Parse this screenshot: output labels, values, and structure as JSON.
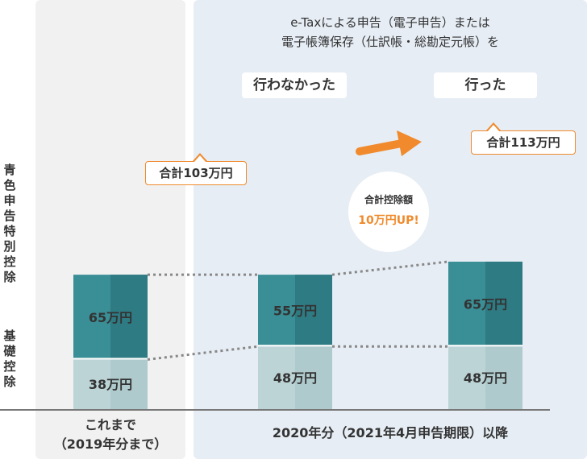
{
  "header": {
    "line1": "e-Taxによる申告（電子申告）または",
    "line2": "電子帳簿保存（仕訳帳・総勘定元帳）を"
  },
  "scenario_labels": {
    "not_done": "行わなかった",
    "done": "行った"
  },
  "y_axis_labels": {
    "blue": "青色申告特別控除",
    "basic": "基礎控除"
  },
  "x_labels": {
    "before_line1": "これまで",
    "before_line2": "（2019年分まで）",
    "after": "2020年分（2021年4月申告期限）以降"
  },
  "callouts": {
    "total_103": "合計103万円",
    "total_113": "合計113万円"
  },
  "badge": {
    "line1": "合計控除額",
    "line2": "10万円UP!"
  },
  "colors": {
    "blue_deduction": "#3a8e95",
    "blue_deduction_dark": "#2f7b83",
    "basic_deduction": "#bcd4d6",
    "basic_deduction_dark": "#aecacd",
    "accent": "#f08a2c"
  },
  "chart_data": {
    "type": "bar",
    "stacked": true,
    "categories": [
      "これまで（2019年分まで）",
      "行わなかった",
      "行った"
    ],
    "series": [
      {
        "name": "基礎控除",
        "values": [
          38,
          48,
          48
        ],
        "labels": [
          "38万円",
          "48万円",
          "48万円"
        ]
      },
      {
        "name": "青色申告特別控除",
        "values": [
          65,
          55,
          65
        ],
        "labels": [
          "65万円",
          "55万円",
          "65万円"
        ]
      }
    ],
    "totals": [
      103,
      103,
      113
    ],
    "unit": "万円"
  }
}
